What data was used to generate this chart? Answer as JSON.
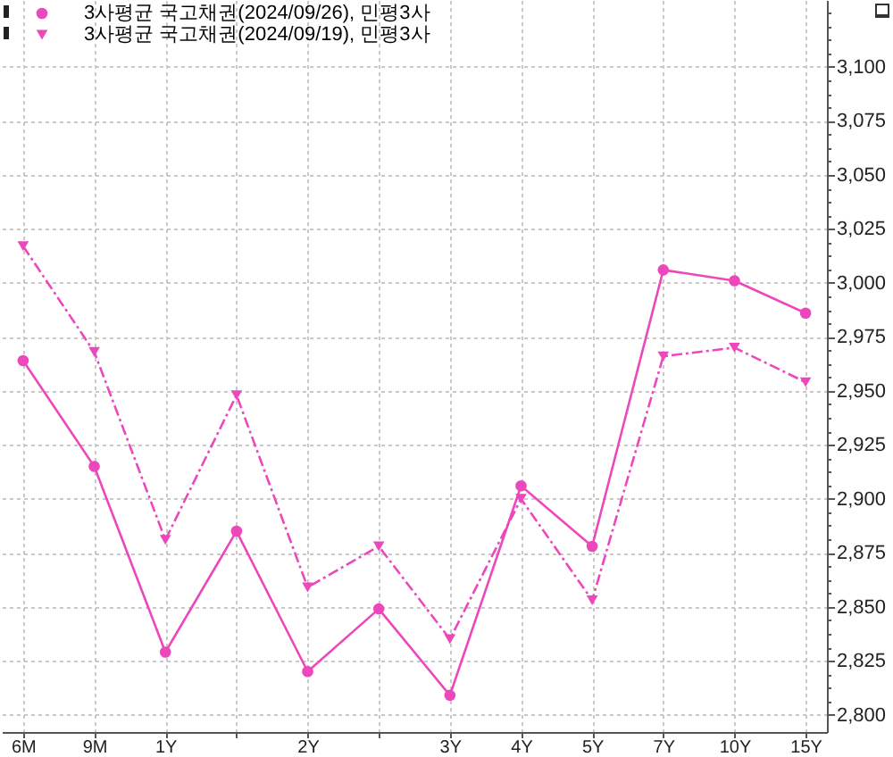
{
  "chart_data": {
    "type": "line",
    "categories": [
      "6M",
      "9M",
      "1Y",
      null,
      "2Y",
      null,
      "3Y",
      "4Y",
      "5Y",
      "7Y",
      "10Y",
      "15Y"
    ],
    "ylim": [
      2792,
      3131
    ],
    "yticks": [
      {
        "value": 2800,
        "label": "2,800"
      },
      {
        "value": 2806.25,
        "label": null
      },
      {
        "value": 2812.5,
        "label": null
      },
      {
        "value": 2818.75,
        "label": null
      },
      {
        "value": 2825,
        "label": "2,825"
      },
      {
        "value": 2831.25,
        "label": null
      },
      {
        "value": 2837.5,
        "label": null
      },
      {
        "value": 2843.75,
        "label": null
      },
      {
        "value": 2850,
        "label": "2,850"
      },
      {
        "value": 2856.25,
        "label": null
      },
      {
        "value": 2862.5,
        "label": null
      },
      {
        "value": 2868.75,
        "label": null
      },
      {
        "value": 2875,
        "label": "2,875"
      },
      {
        "value": 2881.25,
        "label": null
      },
      {
        "value": 2887.5,
        "label": null
      },
      {
        "value": 2893.75,
        "label": null
      },
      {
        "value": 2900,
        "label": "2,900"
      },
      {
        "value": 2906.25,
        "label": null
      },
      {
        "value": 2912.5,
        "label": null
      },
      {
        "value": 2918.75,
        "label": null
      },
      {
        "value": 2925,
        "label": "2,925"
      },
      {
        "value": 2931.25,
        "label": null
      },
      {
        "value": 2937.5,
        "label": null
      },
      {
        "value": 2943.75,
        "label": null
      },
      {
        "value": 2950,
        "label": "2,950"
      },
      {
        "value": 2956.25,
        "label": null
      },
      {
        "value": 2962.5,
        "label": null
      },
      {
        "value": 2968.75,
        "label": null
      },
      {
        "value": 2975,
        "label": "2,975"
      },
      {
        "value": 2981.25,
        "label": null
      },
      {
        "value": 2987.5,
        "label": null
      },
      {
        "value": 2993.75,
        "label": null
      },
      {
        "value": 3000,
        "label": "3,000"
      },
      {
        "value": 3006.25,
        "label": null
      },
      {
        "value": 3012.5,
        "label": null
      },
      {
        "value": 3018.75,
        "label": null
      },
      {
        "value": 3025,
        "label": "3,025"
      },
      {
        "value": 3031.25,
        "label": null
      },
      {
        "value": 3037.5,
        "label": null
      },
      {
        "value": 3043.75,
        "label": null
      },
      {
        "value": 3050,
        "label": "3,050"
      },
      {
        "value": 3056.25,
        "label": null
      },
      {
        "value": 3062.5,
        "label": null
      },
      {
        "value": 3068.75,
        "label": null
      },
      {
        "value": 3075,
        "label": "3,075"
      },
      {
        "value": 3081.25,
        "label": null
      },
      {
        "value": 3087.5,
        "label": null
      },
      {
        "value": 3093.75,
        "label": null
      },
      {
        "value": 3100,
        "label": "3,100"
      },
      {
        "value": 3106.25,
        "label": null
      },
      {
        "value": 3112.5,
        "label": null
      },
      {
        "value": 3118.75,
        "label": null
      },
      {
        "value": 3125,
        "label": null
      }
    ],
    "grid": true,
    "legend": "top left",
    "series": [
      {
        "name": "3사평균 국고채권(2024/09/26), 민평3사",
        "color": "#ec48bc",
        "marker": "circle",
        "line_style": "solid",
        "values": [
          2964,
          2915,
          2829,
          2885,
          2820,
          2849,
          2809,
          2906,
          2878,
          3006,
          3001,
          2986
        ]
      },
      {
        "name": "3사평균 국고채권(2024/09/19), 민평3사",
        "color": "#ec48bc",
        "marker": "triangle",
        "line_style": "dashed",
        "values": [
          3017,
          2968,
          2881,
          2948,
          2859,
          2878,
          2835,
          2900,
          2853,
          2966,
          2970,
          2954
        ]
      }
    ]
  }
}
